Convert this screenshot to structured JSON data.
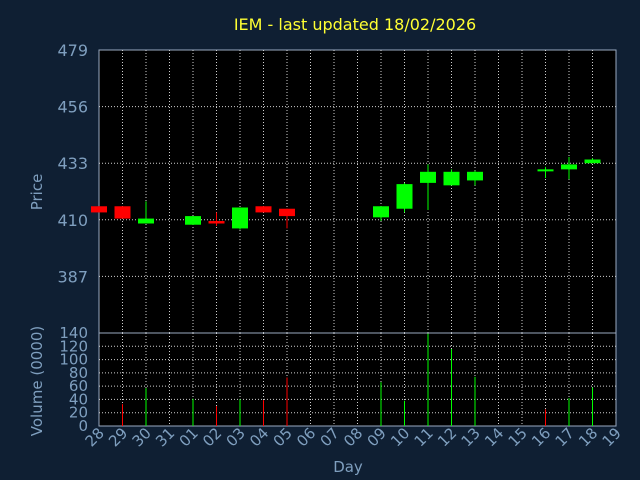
{
  "chart_data": [
    {
      "type": "candlestick",
      "title": "IEM - last updated 18/02/2026",
      "ylabel": "Price",
      "ylim": [
        364,
        479
      ],
      "yticks": [
        479,
        456,
        433,
        410,
        387
      ],
      "grid": true,
      "up_color": "#00ff00",
      "down_color": "#ff0000",
      "candles": [
        {
          "x": 28,
          "open": 415.5,
          "high": 415.5,
          "low": 413.0,
          "close": 413.0
        },
        {
          "x": 29,
          "open": 415.5,
          "high": 415.5,
          "low": 410.5,
          "close": 410.5
        },
        {
          "x": 30,
          "open": 408.5,
          "high": 417.5,
          "low": 408.5,
          "close": 410.5
        },
        {
          "x": 32,
          "open": 408.0,
          "high": 411.5,
          "low": 408.0,
          "close": 411.5
        },
        {
          "x": 33,
          "open": 409.5,
          "high": 413.0,
          "low": 407.5,
          "close": 408.5
        },
        {
          "x": 34,
          "open": 406.5,
          "high": 415.0,
          "low": 406.0,
          "close": 415.0
        },
        {
          "x": 35,
          "open": 415.5,
          "high": 415.5,
          "low": 413.0,
          "close": 413.0
        },
        {
          "x": 36,
          "open": 414.5,
          "high": 414.5,
          "low": 406.5,
          "close": 411.5
        },
        {
          "x": 40,
          "open": 411.0,
          "high": 415.5,
          "low": 409.5,
          "close": 415.5
        },
        {
          "x": 41,
          "open": 414.5,
          "high": 425.0,
          "low": 413.0,
          "close": 424.5
        },
        {
          "x": 42,
          "open": 425.0,
          "high": 432.5,
          "low": 414.0,
          "close": 429.5
        },
        {
          "x": 43,
          "open": 424.0,
          "high": 430.5,
          "low": 424.0,
          "close": 429.5
        },
        {
          "x": 44,
          "open": 426.0,
          "high": 430.0,
          "low": 424.0,
          "close": 429.5
        },
        {
          "x": 47,
          "open": 430.5,
          "high": 431.5,
          "low": 427.0,
          "close": 430.5
        },
        {
          "x": 48,
          "open": 430.5,
          "high": 435.5,
          "low": 426.5,
          "close": 432.5
        },
        {
          "x": 49,
          "open": 433.0,
          "high": 435.0,
          "low": 433.0,
          "close": 434.5
        }
      ]
    },
    {
      "type": "bar",
      "ylabel": "Volume (0000)",
      "xlabel": "Day",
      "ylim": [
        0,
        140
      ],
      "yticks": [
        0,
        20,
        40,
        60,
        80,
        100,
        120,
        140
      ],
      "x_tick_labels": [
        "28",
        "29",
        "30",
        "31",
        "01",
        "02",
        "03",
        "04",
        "05",
        "06",
        "07",
        "08",
        "09",
        "10",
        "11",
        "12",
        "13",
        "14",
        "15",
        "16",
        "17",
        "18",
        "19"
      ],
      "bars": [
        {
          "x": 29,
          "value": 33,
          "direction": "down"
        },
        {
          "x": 30,
          "value": 57,
          "direction": "up"
        },
        {
          "x": 32,
          "value": 41,
          "direction": "up"
        },
        {
          "x": 33,
          "value": 30,
          "direction": "down"
        },
        {
          "x": 34,
          "value": 40,
          "direction": "up"
        },
        {
          "x": 35,
          "value": 39,
          "direction": "down"
        },
        {
          "x": 36,
          "value": 73,
          "direction": "down"
        },
        {
          "x": 40,
          "value": 66,
          "direction": "up"
        },
        {
          "x": 41,
          "value": 38,
          "direction": "up"
        },
        {
          "x": 42,
          "value": 139,
          "direction": "up"
        },
        {
          "x": 43,
          "value": 116,
          "direction": "up"
        },
        {
          "x": 44,
          "value": 74,
          "direction": "up"
        },
        {
          "x": 47,
          "value": 25,
          "direction": "down"
        },
        {
          "x": 48,
          "value": 42,
          "direction": "up"
        },
        {
          "x": 49,
          "value": 58,
          "direction": "up"
        }
      ]
    }
  ]
}
